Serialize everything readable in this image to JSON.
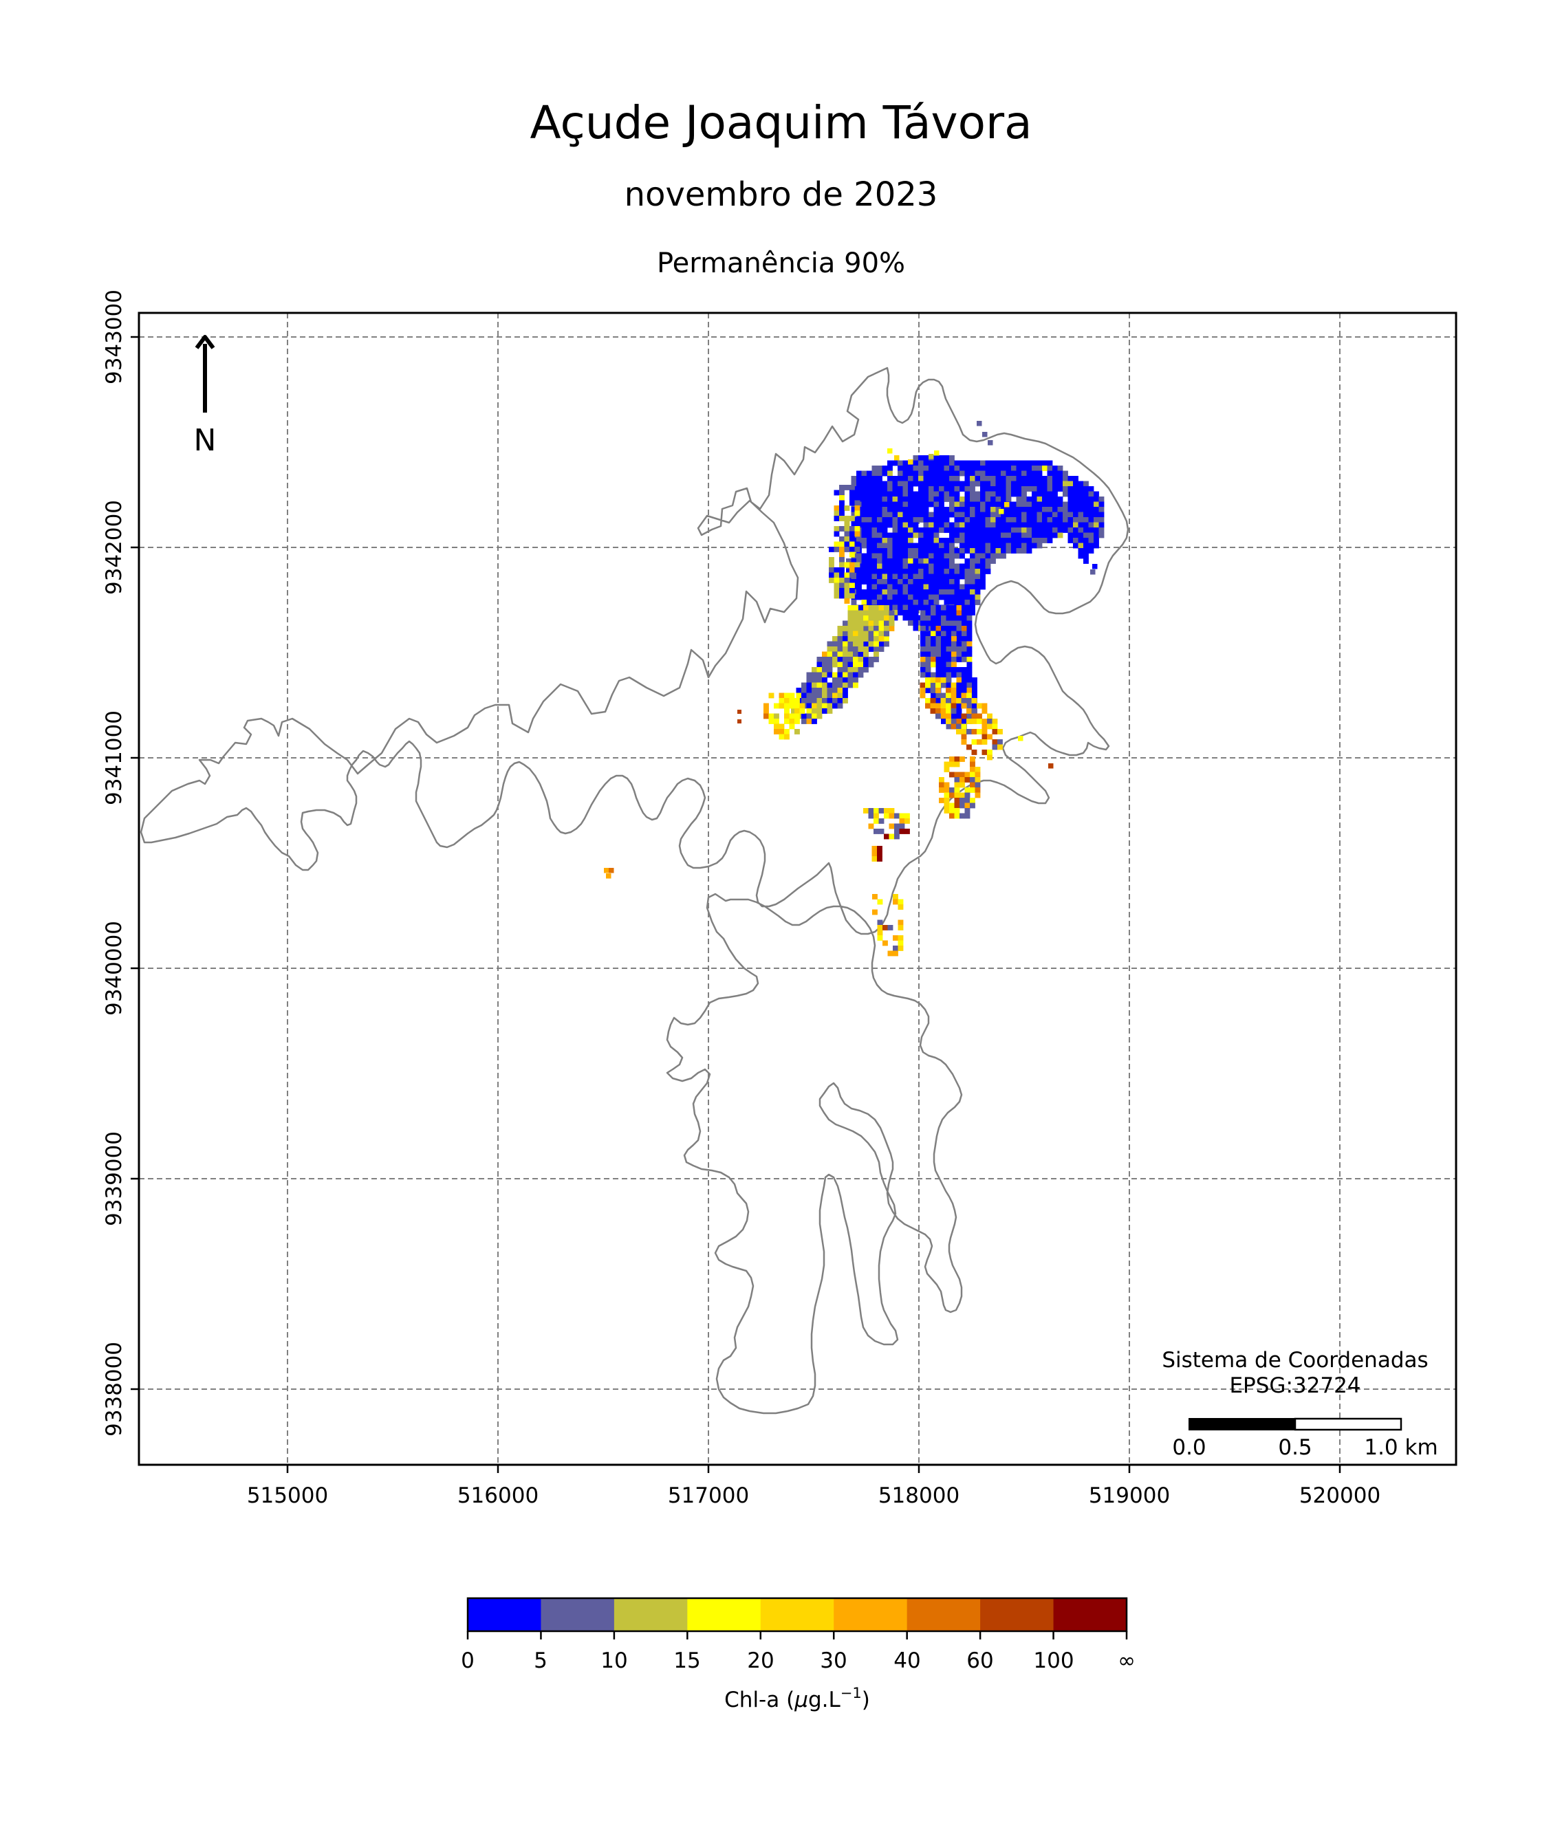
{
  "header": {
    "title": "Açude Joaquim Távora",
    "subtitle": "novembro de 2023",
    "subtitle2": "Permanência 90%"
  },
  "map": {
    "x_ticks": [
      "515000",
      "516000",
      "517000",
      "518000",
      "519000",
      "520000"
    ],
    "y_ticks": [
      "9343000",
      "9342000",
      "9341000",
      "9340000",
      "9339000",
      "9338000"
    ],
    "north_label": "N",
    "crs_line1": "Sistema de Coordenadas",
    "crs_line2": "EPSG:32724",
    "scale_labels": [
      "0.0",
      "0.5",
      "1.0 km"
    ],
    "outline_color": "#808080",
    "grid_color": "#808080"
  },
  "colorbar": {
    "label_prefix": "Chl-a (",
    "label_mu": "μ",
    "label_mid": "g.L",
    "label_sup": "−1",
    "label_suffix": ")",
    "ticks": [
      "0",
      "5",
      "10",
      "15",
      "20",
      "30",
      "40",
      "60",
      "100",
      "∞"
    ],
    "colors": [
      "#0000ff",
      "#5e5e9e",
      "#c4c23c",
      "#ffff00",
      "#ffd700",
      "#ffaa00",
      "#e07000",
      "#b84000",
      "#8b0000"
    ]
  }
}
